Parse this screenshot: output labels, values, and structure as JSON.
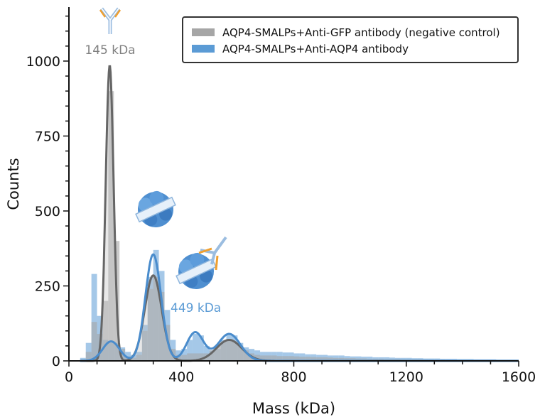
{
  "chart_data": {
    "type": "bar",
    "xlabel": "Mass (kDa)",
    "ylabel": "Counts",
    "xlim": [
      0,
      1600
    ],
    "ylim": [
      0,
      1180
    ],
    "xticks": [
      0,
      400,
      800,
      1200,
      1600
    ],
    "yticks": [
      0,
      250,
      500,
      750,
      1000
    ],
    "legend_position": "top-right",
    "bin_width": 20,
    "bin_start": 40,
    "series": [
      {
        "name": "AQP4-SMALPs+Anti-GFP antibody (negative control)",
        "color": "#a6a6a6",
        "fit_color": "#666666",
        "histogram": [
          5,
          30,
          130,
          90,
          200,
          900,
          400,
          40,
          15,
          10,
          20,
          100,
          240,
          280,
          230,
          120,
          40,
          20,
          20,
          25,
          25,
          25,
          25,
          35,
          50,
          65,
          70,
          65,
          50,
          35,
          25,
          20,
          18,
          18,
          18,
          16,
          16,
          16,
          15,
          14,
          14,
          13,
          12,
          12,
          11,
          10,
          10,
          9,
          9,
          8,
          8,
          7,
          7,
          7,
          6,
          6,
          6,
          5,
          5,
          5,
          5,
          4,
          4,
          4,
          4,
          3,
          3,
          3,
          3,
          3,
          2,
          2,
          2,
          2,
          2,
          2,
          2,
          2
        ],
        "fit_peaks": [
          {
            "center": 145,
            "height": 985,
            "sigma": 14
          },
          {
            "center": 300,
            "height": 285,
            "sigma": 30
          },
          {
            "center": 570,
            "height": 70,
            "sigma": 45
          }
        ]
      },
      {
        "name": "AQP4-SMALPs+Anti-AQP4 antibody",
        "color": "#5b9bd5",
        "fit_color": "#4a8ccc",
        "histogram": [
          10,
          60,
          290,
          150,
          70,
          60,
          60,
          45,
          30,
          20,
          30,
          120,
          280,
          370,
          300,
          170,
          70,
          35,
          40,
          70,
          90,
          85,
          50,
          35,
          40,
          70,
          90,
          85,
          60,
          45,
          40,
          35,
          30,
          30,
          30,
          30,
          28,
          28,
          25,
          25,
          22,
          22,
          20,
          20,
          18,
          18,
          18,
          16,
          15,
          15,
          14,
          14,
          12,
          12,
          12,
          11,
          10,
          10,
          10,
          9,
          9,
          8,
          8,
          8,
          7,
          7,
          7,
          6,
          6,
          6,
          5,
          5,
          5,
          5,
          4,
          4,
          4,
          4
        ],
        "fit_peaks": [
          {
            "center": 150,
            "height": 65,
            "sigma": 30
          },
          {
            "center": 300,
            "height": 355,
            "sigma": 28
          },
          {
            "center": 449,
            "height": 95,
            "sigma": 30
          },
          {
            "center": 570,
            "height": 90,
            "sigma": 40
          }
        ]
      }
    ],
    "annotations": [
      {
        "text": "145 kDa",
        "x": 145,
        "color": "#808080"
      },
      {
        "text": "449 kDa",
        "x": 449,
        "color": "#5b9bd5"
      }
    ]
  }
}
